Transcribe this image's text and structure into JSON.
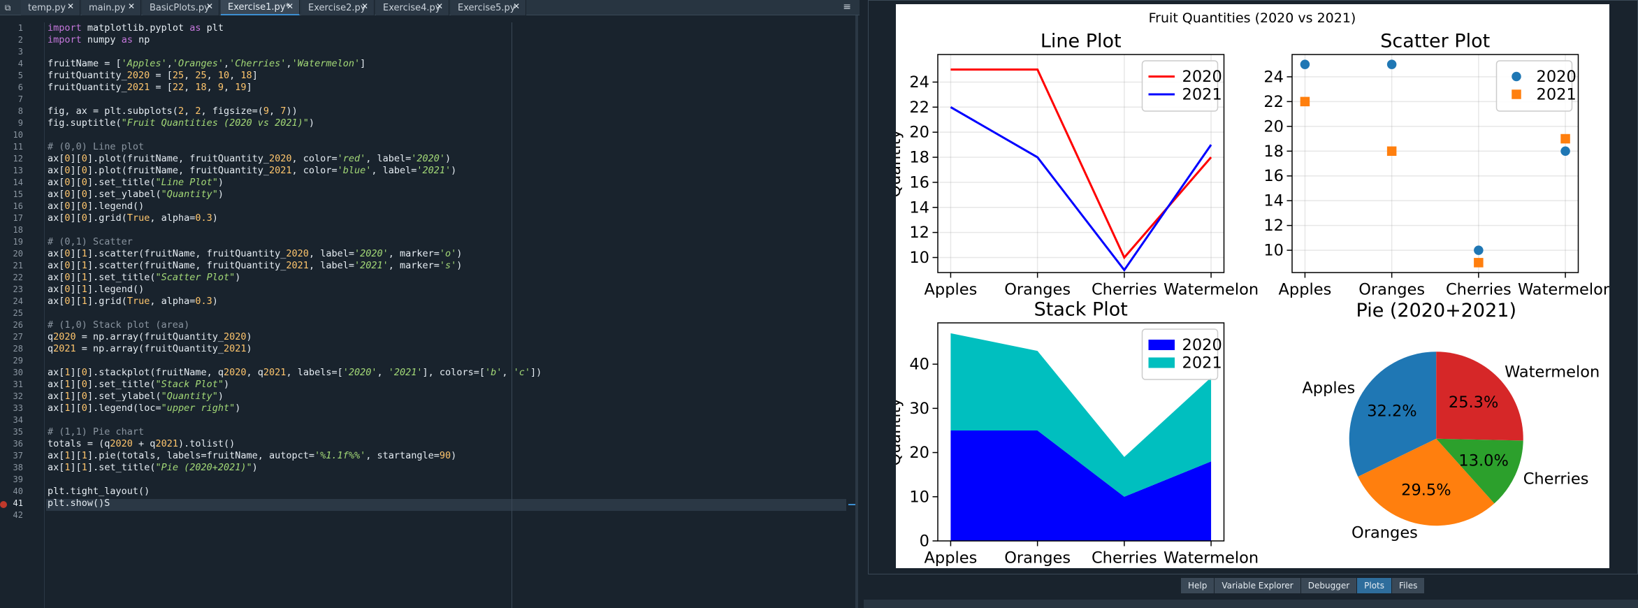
{
  "tabs": [
    {
      "label": "temp.py"
    },
    {
      "label": "main.py"
    },
    {
      "label": "BasicPlots.py"
    },
    {
      "label": "Exercise1.py*"
    },
    {
      "label": "Exercise2.py"
    },
    {
      "label": "Exercise4.py"
    },
    {
      "label": "Exercise5.py"
    }
  ],
  "editor": {
    "line_numbers": [
      "1",
      "2",
      "3",
      "4",
      "5",
      "6",
      "7",
      "8",
      "9",
      "10",
      "11",
      "12",
      "13",
      "14",
      "15",
      "16",
      "17",
      "18",
      "19",
      "20",
      "21",
      "22",
      "23",
      "24",
      "25",
      "26",
      "27",
      "28",
      "29",
      "30",
      "31",
      "32",
      "33",
      "34",
      "35",
      "36",
      "37",
      "38",
      "39",
      "40",
      "41",
      "42"
    ],
    "code_lines": [
      "import matplotlib.pyplot as plt",
      "import numpy as np",
      "",
      "fruitName = ['Apples','Oranges','Cherries','Watermelon']",
      "fruitQuantity_2020 = [25, 25, 10, 18]",
      "fruitQuantity_2021 = [22, 18, 9, 19]",
      "",
      "fig, ax = plt.subplots(2, 2, figsize=(9, 7))",
      "fig.suptitle(\"Fruit Quantities (2020 vs 2021)\")",
      "",
      "# (0,0) Line plot",
      "ax[0][0].plot(fruitName, fruitQuantity_2020, color='red', label='2020')",
      "ax[0][0].plot(fruitName, fruitQuantity_2021, color='blue', label='2021')",
      "ax[0][0].set_title(\"Line Plot\")",
      "ax[0][0].set_ylabel(\"Quantity\")",
      "ax[0][0].legend()",
      "ax[0][0].grid(True, alpha=0.3)",
      "",
      "# (0,1) Scatter",
      "ax[0][1].scatter(fruitName, fruitQuantity_2020, label='2020', marker='o')",
      "ax[0][1].scatter(fruitName, fruitQuantity_2021, label='2021', marker='s')",
      "ax[0][1].set_title(\"Scatter Plot\")",
      "ax[0][1].legend()",
      "ax[0][1].grid(True, alpha=0.3)",
      "",
      "# (1,0) Stack plot (area)",
      "q2020 = np.array(fruitQuantity_2020)",
      "q2021 = np.array(fruitQuantity_2021)",
      "",
      "ax[1][0].stackplot(fruitName, q2020, q2021, labels=['2020', '2021'], colors=['b', 'c'])",
      "ax[1][0].set_title(\"Stack Plot\")",
      "ax[1][0].set_ylabel(\"Quantity\")",
      "ax[1][0].legend(loc=\"upper right\")",
      "",
      "# (1,1) Pie chart",
      "totals = (q2020 + q2021).tolist()",
      "ax[1][1].pie(totals, labels=fruitName, autopct='%1.1f%%', startangle=90)",
      "ax[1][1].set_title(\"Pie (2020+2021)\")",
      "",
      "plt.tight_layout()",
      "plt.show()S",
      ""
    ]
  },
  "bottom_tabs": [
    "Help",
    "Variable Explorer",
    "Debugger",
    "Plots",
    "Files"
  ],
  "chart_data": {
    "suptitle": "Fruit Quantities (2020 vs 2021)",
    "categories": [
      "Apples",
      "Oranges",
      "Cherries",
      "Watermelon"
    ],
    "charts": [
      {
        "type": "line",
        "title": "Line Plot",
        "ylabel": "Quantity",
        "ylim": [
          8.8,
          26.2
        ],
        "yticks": [
          10,
          12,
          14,
          16,
          18,
          20,
          22,
          24
        ],
        "grid": true,
        "legend": "upper right",
        "series": [
          {
            "name": "2020",
            "color": "#ff0000",
            "values": [
              25,
              25,
              10,
              18
            ]
          },
          {
            "name": "2021",
            "color": "#0000ff",
            "values": [
              22,
              18,
              9,
              19
            ]
          }
        ]
      },
      {
        "type": "scatter",
        "title": "Scatter Plot",
        "ylim": [
          8.2,
          25.8
        ],
        "yticks": [
          10,
          12,
          14,
          16,
          18,
          20,
          22,
          24
        ],
        "grid": true,
        "legend": "upper right",
        "series": [
          {
            "name": "2020",
            "marker": "o",
            "color": "#1f77b4",
            "values": [
              25,
              25,
              10,
              18
            ]
          },
          {
            "name": "2021",
            "marker": "s",
            "color": "#ff7f0e",
            "values": [
              22,
              18,
              9,
              19
            ]
          }
        ]
      },
      {
        "type": "area",
        "title": "Stack Plot",
        "ylabel": "Quantity",
        "ylim": [
          0,
          49.35
        ],
        "yticks": [
          0,
          10,
          20,
          30,
          40
        ],
        "legend": "upper right",
        "series": [
          {
            "name": "2020",
            "color": "#0000ff",
            "values": [
              25,
              25,
              10,
              18
            ]
          },
          {
            "name": "2021",
            "color": "#00bfbf",
            "values": [
              22,
              18,
              9,
              19
            ]
          }
        ]
      },
      {
        "type": "pie",
        "title": "Pie (2020+2021)",
        "labels": [
          "Apples",
          "Oranges",
          "Cherries",
          "Watermelon"
        ],
        "values": [
          47,
          43,
          19,
          37
        ],
        "pct_labels": [
          "32.2%",
          "29.5%",
          "13.0%",
          "25.3%"
        ],
        "colors": [
          "#1f77b4",
          "#ff7f0e",
          "#2ca02c",
          "#d62728"
        ],
        "startangle": 90
      }
    ]
  }
}
